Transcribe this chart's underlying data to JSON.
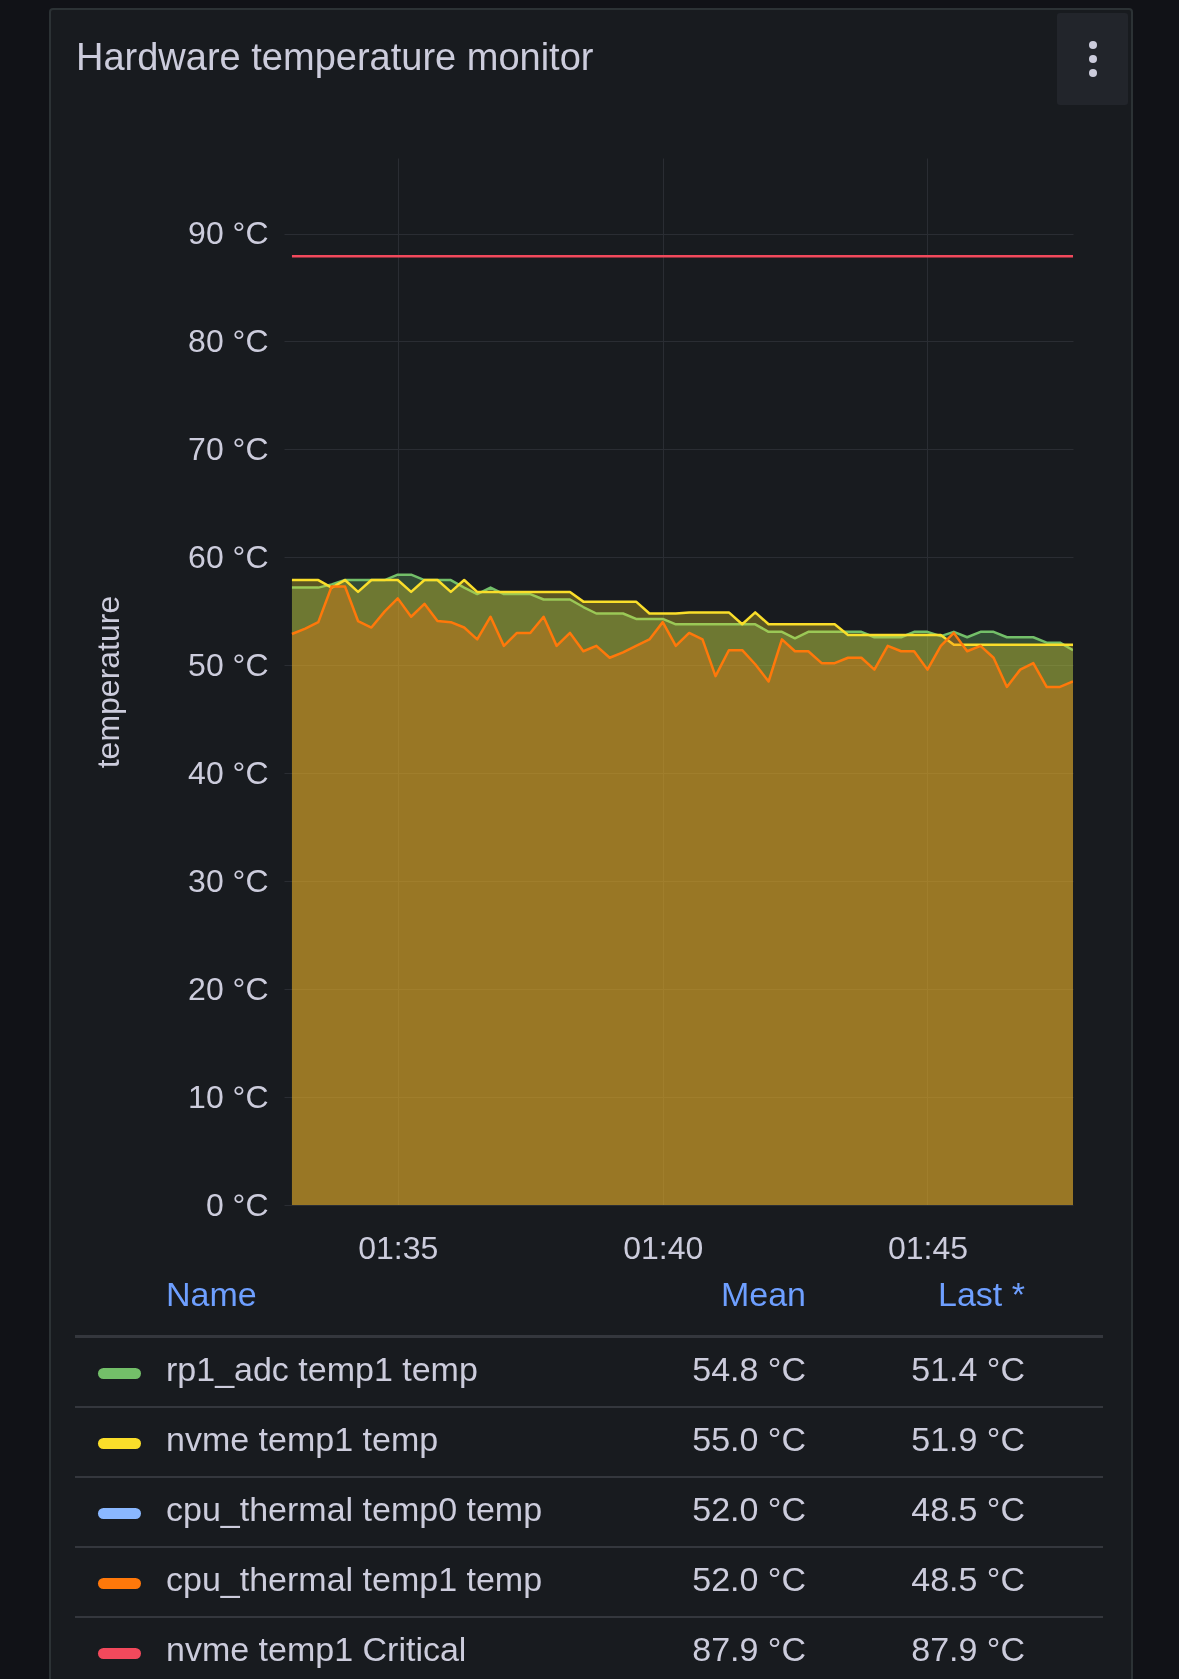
{
  "chart_data": {
    "type": "area",
    "title": "Hardware temperature monitor",
    "ylabel": "temperature",
    "x": [
      1.55,
      1.5542,
      1.5583,
      1.5625,
      1.5667,
      1.5708,
      1.575,
      1.5792,
      1.5833,
      1.5875,
      1.5917,
      1.5958,
      1.6,
      1.6042,
      1.6083,
      1.6125,
      1.6167,
      1.6208,
      1.625,
      1.6292,
      1.6333,
      1.6375,
      1.6417,
      1.6458,
      1.65,
      1.6542,
      1.6583,
      1.6625,
      1.6667,
      1.6708,
      1.675,
      1.6792,
      1.6833,
      1.6875,
      1.6917,
      1.6958,
      1.7,
      1.7042,
      1.7083,
      1.7125,
      1.7167,
      1.7208,
      1.725,
      1.7292,
      1.7333,
      1.7375,
      1.7417,
      1.7458,
      1.75,
      1.7542,
      1.7583,
      1.7625,
      1.7667,
      1.7708,
      1.775,
      1.7792,
      1.7833,
      1.7875,
      1.7917,
      1.7958
    ],
    "xlim": [
      1.5475,
      1.7958
    ],
    "xticks": [
      {
        "value": 1.5833,
        "label": "01:35"
      },
      {
        "value": 1.6667,
        "label": "01:40"
      },
      {
        "value": 1.75,
        "label": "01:45"
      }
    ],
    "ylim": [
      0,
      97
    ],
    "yticks": [
      {
        "value": 0,
        "label": "0 °C"
      },
      {
        "value": 10,
        "label": "10 °C"
      },
      {
        "value": 20,
        "label": "20 °C"
      },
      {
        "value": 30,
        "label": "30 °C"
      },
      {
        "value": 40,
        "label": "40 °C"
      },
      {
        "value": 50,
        "label": "50 °C"
      },
      {
        "value": 60,
        "label": "60 °C"
      },
      {
        "value": 70,
        "label": "70 °C"
      },
      {
        "value": 80,
        "label": "80 °C"
      },
      {
        "value": 90,
        "label": "90 °C"
      }
    ],
    "grid": true,
    "legend": "bottom",
    "series": [
      {
        "name": "rp1_adc temp1 temp",
        "color": "#73bf69",
        "values": [
          57.2,
          57.2,
          57.2,
          57.5,
          57.9,
          57.9,
          57.9,
          57.9,
          58.4,
          58.4,
          57.9,
          57.9,
          57.9,
          57.2,
          56.6,
          57.2,
          56.6,
          56.6,
          56.6,
          56.1,
          56.1,
          56.1,
          55.4,
          54.8,
          54.8,
          54.8,
          54.3,
          54.3,
          54.3,
          53.8,
          53.8,
          53.8,
          53.8,
          53.8,
          53.8,
          53.8,
          53.1,
          53.1,
          52.5,
          53.1,
          53.1,
          53.1,
          53.1,
          53.1,
          52.6,
          52.6,
          52.6,
          53.1,
          53.1,
          52.7,
          53.1,
          52.6,
          53.1,
          53.1,
          52.6,
          52.6,
          52.6,
          52.1,
          52.1,
          51.4
        ]
      },
      {
        "name": "nvme temp1 temp",
        "color": "#fade2a",
        "values": [
          57.9,
          57.9,
          57.9,
          57.2,
          57.9,
          56.8,
          57.9,
          57.9,
          57.9,
          56.8,
          57.9,
          57.9,
          56.8,
          57.9,
          56.8,
          56.8,
          56.8,
          56.8,
          56.8,
          56.8,
          56.8,
          56.8,
          55.9,
          55.9,
          55.9,
          55.9,
          55.9,
          54.8,
          54.8,
          54.8,
          54.9,
          54.9,
          54.9,
          54.9,
          53.8,
          54.9,
          53.8,
          53.8,
          53.8,
          53.8,
          53.8,
          53.8,
          52.8,
          52.8,
          52.8,
          52.8,
          52.8,
          52.8,
          52.8,
          52.8,
          51.9,
          51.9,
          51.9,
          51.9,
          51.9,
          51.9,
          51.9,
          51.9,
          51.9,
          51.9
        ]
      },
      {
        "name": "cpu_thermal temp0 temp",
        "color": "#8ab8ff",
        "values": [
          null,
          null,
          null,
          null,
          null,
          null,
          null,
          null,
          null,
          null,
          null,
          null,
          null,
          null,
          null,
          null,
          null,
          null,
          null,
          null,
          null,
          null,
          null,
          null,
          null,
          null,
          null,
          null,
          null,
          null,
          null,
          null,
          null,
          null,
          null,
          null,
          null,
          null,
          null,
          null,
          null,
          null,
          null,
          null,
          null,
          null,
          null,
          null,
          null,
          null,
          null,
          null,
          null,
          null,
          null,
          null,
          null,
          null,
          null,
          null
        ]
      },
      {
        "name": "cpu_thermal temp1 temp",
        "color": "#ff780a",
        "values": [
          52.9,
          53.4,
          54.0,
          57.3,
          57.3,
          54.1,
          53.5,
          55.0,
          56.2,
          54.5,
          55.7,
          54.1,
          54.0,
          53.5,
          52.4,
          54.5,
          51.8,
          53.0,
          53.0,
          54.5,
          51.8,
          53.0,
          51.3,
          51.8,
          50.7,
          51.2,
          51.8,
          52.4,
          54.0,
          51.8,
          53.0,
          52.4,
          49.0,
          51.4,
          51.4,
          50.1,
          48.5,
          52.4,
          51.3,
          51.3,
          50.2,
          50.2,
          50.7,
          50.7,
          49.6,
          51.8,
          51.3,
          51.3,
          49.6,
          51.8,
          53.0,
          51.3,
          51.8,
          50.7,
          48.0,
          49.6,
          50.2,
          48.0,
          48.0,
          48.5
        ]
      },
      {
        "name": "nvme temp1 Critical",
        "color": "#f2495c",
        "type": "line",
        "values": [
          87.9,
          87.9,
          87.9,
          87.9,
          87.9,
          87.9,
          87.9,
          87.9,
          87.9,
          87.9,
          87.9,
          87.9,
          87.9,
          87.9,
          87.9,
          87.9,
          87.9,
          87.9,
          87.9,
          87.9,
          87.9,
          87.9,
          87.9,
          87.9,
          87.9,
          87.9,
          87.9,
          87.9,
          87.9,
          87.9,
          87.9,
          87.9,
          87.9,
          87.9,
          87.9,
          87.9,
          87.9,
          87.9,
          87.9,
          87.9,
          87.9,
          87.9,
          87.9,
          87.9,
          87.9,
          87.9,
          87.9,
          87.9,
          87.9,
          87.9,
          87.9,
          87.9,
          87.9,
          87.9,
          87.9,
          87.9,
          87.9,
          87.9,
          87.9,
          87.9
        ]
      }
    ],
    "annotations": [
      "Name",
      "Mean",
      "Last *",
      "54.8 °C",
      "51.4 °C",
      "55.0 °C",
      "51.9 °C",
      "52.0 °C",
      "48.5 °C",
      "52.0 °C",
      "48.5 °C",
      "87.9 °C",
      "87.9 °C"
    ]
  }
}
